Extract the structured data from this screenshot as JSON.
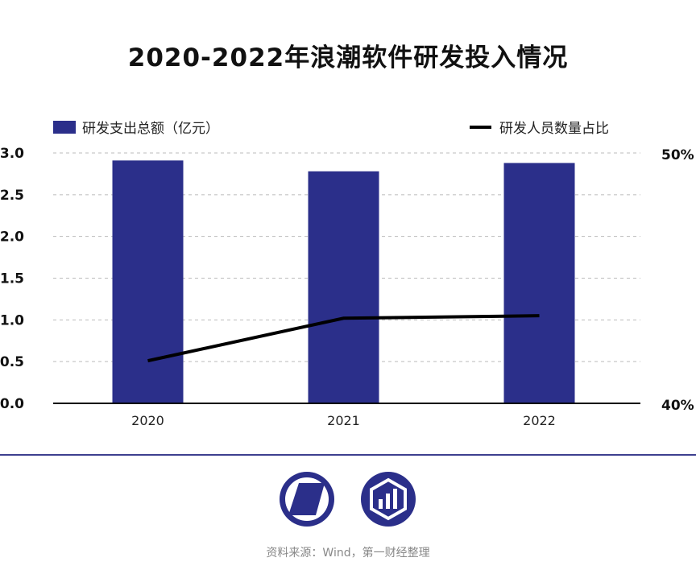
{
  "title": "2020-2022年浪潮软件研发投入情况",
  "source": "资料来源：Wind，第一财经整理",
  "colors": {
    "bar": "#2b2f8a",
    "line": "#000000",
    "grid": "#bbbbbb",
    "divider": "#3d3f8f"
  },
  "logos": [
    "yicai-logo-icon",
    "data-chart-logo-icon"
  ],
  "chart_data": {
    "type": "bar",
    "categories": [
      "2020",
      "2021",
      "2022"
    ],
    "series": [
      {
        "name": "研发支出总额（亿元）",
        "type": "bar",
        "axis": "left",
        "values": [
          2.91,
          2.78,
          2.88
        ]
      },
      {
        "name": "研发人员数量占比",
        "type": "line",
        "axis": "right",
        "values": [
          41.7,
          43.4,
          43.5
        ]
      }
    ],
    "y_left": {
      "min": 0,
      "max": 3.0,
      "ticks": [
        "0.0",
        "0.5",
        "1.0",
        "1.5",
        "2.0",
        "2.5",
        "3.0"
      ]
    },
    "y_right": {
      "min": 40,
      "max": 50,
      "ticks": [
        "40%",
        "50%"
      ]
    },
    "grid": true,
    "legend": "top"
  }
}
